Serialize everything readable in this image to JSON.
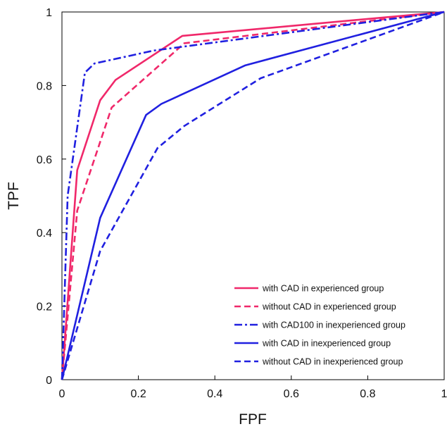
{
  "chart_data": {
    "type": "line",
    "xlabel": "FPF",
    "ylabel": "TPF",
    "xlim": [
      0,
      1
    ],
    "ylim": [
      0,
      1
    ],
    "x_ticks": [
      0,
      0.2,
      0.4,
      0.6,
      0.8,
      1
    ],
    "y_ticks": [
      0,
      0.2,
      0.4,
      0.6,
      0.8,
      1
    ],
    "x_tick_labels": [
      "0",
      "0.2",
      "0.4",
      "0.6",
      "0.8",
      "1"
    ],
    "y_tick_labels": [
      "0",
      "0.2",
      "0.4",
      "0.6",
      "0.8",
      "1"
    ],
    "grid": false,
    "legend_position": "bottom-right",
    "series": [
      {
        "name": "with CAD in experienced group",
        "color": "#f0286a",
        "dash": "solid",
        "points": [
          [
            0,
            0
          ],
          [
            0.04,
            0.57
          ],
          [
            0.1,
            0.76
          ],
          [
            0.14,
            0.815
          ],
          [
            0.315,
            0.935
          ],
          [
            1,
            1
          ]
        ]
      },
      {
        "name": "without CAD in experienced group",
        "color": "#f0286a",
        "dash": "dashed",
        "points": [
          [
            0,
            0
          ],
          [
            0.04,
            0.46
          ],
          [
            0.13,
            0.74
          ],
          [
            0.32,
            0.915
          ],
          [
            1,
            1
          ]
        ]
      },
      {
        "name": "with CAD100 in inexperienced group",
        "color": "#2020e0",
        "dash": "dashdot",
        "points": [
          [
            0,
            0
          ],
          [
            0.015,
            0.5
          ],
          [
            0.06,
            0.835
          ],
          [
            0.085,
            0.86
          ],
          [
            0.24,
            0.895
          ],
          [
            1,
            1
          ]
        ]
      },
      {
        "name": "with CAD in inexperienced group",
        "color": "#2020e0",
        "dash": "solid",
        "points": [
          [
            0,
            0
          ],
          [
            0.1,
            0.44
          ],
          [
            0.22,
            0.72
          ],
          [
            0.26,
            0.75
          ],
          [
            0.48,
            0.855
          ],
          [
            1,
            1
          ]
        ]
      },
      {
        "name": "without CAD in inexperienced group",
        "color": "#2020e0",
        "dash": "dashed",
        "points": [
          [
            0,
            0
          ],
          [
            0.1,
            0.35
          ],
          [
            0.25,
            0.63
          ],
          [
            0.32,
            0.69
          ],
          [
            0.52,
            0.82
          ],
          [
            1,
            1
          ]
        ]
      }
    ]
  }
}
